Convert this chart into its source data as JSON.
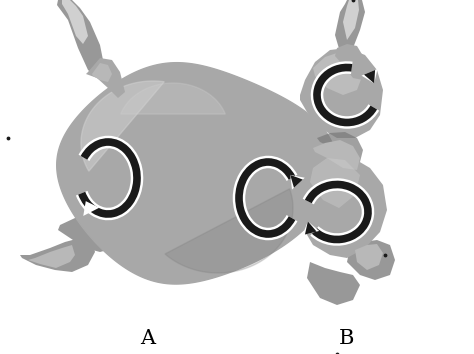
{
  "label_A": "A",
  "label_B": "B",
  "background_color": "#ffffff",
  "bg_gray": "#e8e8e8",
  "stomach_base": "#a8a8a8",
  "stomach_light": "#d0d0d0",
  "stomach_dark": "#787878",
  "stomach_mid": "#b8b8b8",
  "tube_color": "#989898",
  "arrow_black": "#1a1a1a",
  "arrow_white": "#ffffff",
  "dot_color": "#1a1a1a",
  "label_fontsize": 15,
  "fig_width": 4.74,
  "fig_height": 3.54,
  "dpi": 100
}
